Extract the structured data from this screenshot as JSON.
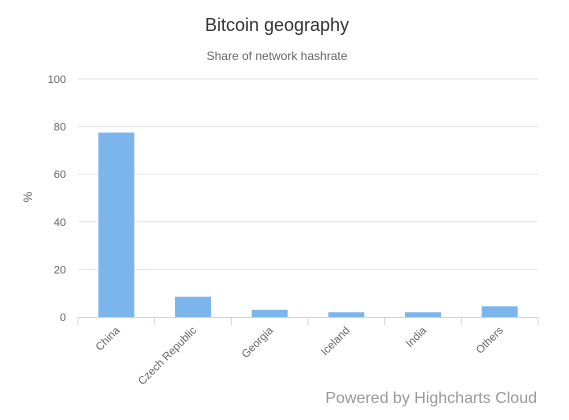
{
  "chart_data": {
    "type": "bar",
    "title": "Bitcoin geography",
    "subtitle": "Share of network hashrate",
    "xlabel": "",
    "ylabel": "%",
    "categories": [
      "China",
      "Czech Republic",
      "Georgia",
      "Iceland",
      "India",
      "Others"
    ],
    "values": [
      77.5,
      8.5,
      3.0,
      2.0,
      2.0,
      4.5
    ],
    "ylim": [
      0,
      100
    ],
    "yticks": [
      "0",
      "20",
      "40",
      "60",
      "80",
      "100"
    ],
    "grid": true,
    "legend": "none",
    "bar_color": "#7cb5ec",
    "grid_color": "#e6e6e6",
    "axis_color": "#ccd6eb"
  },
  "credit": "Powered by Highcharts Cloud"
}
